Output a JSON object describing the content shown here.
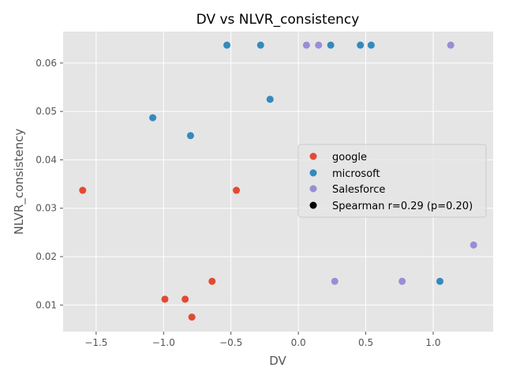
{
  "chart_data": {
    "type": "scatter",
    "title": "DV vs NLVR_consistency",
    "xlabel": "DV",
    "ylabel": "NLVR_consistency",
    "xlim": [
      -1.745,
      1.445
    ],
    "ylim": [
      0.0045,
      0.0665
    ],
    "xticks": [
      -1.5,
      -1.0,
      -0.5,
      0.0,
      0.5,
      1.0
    ],
    "xtick_labels": [
      "−1.5",
      "−1.0",
      "−0.5",
      "0.0",
      "0.5",
      "1.0"
    ],
    "yticks": [
      0.01,
      0.02,
      0.03,
      0.04,
      0.05,
      0.06
    ],
    "ytick_labels": [
      "0.01",
      "0.02",
      "0.03",
      "0.04",
      "0.05",
      "0.06"
    ],
    "grid": true,
    "legend_position": "center-right",
    "annotation": "Spearman r=0.29 (p=0.20)",
    "series": [
      {
        "name": "google",
        "color": "#E24A33",
        "points": [
          {
            "x": -1.6,
            "y": 0.0337
          },
          {
            "x": -0.46,
            "y": 0.0337
          },
          {
            "x": -0.64,
            "y": 0.0149
          },
          {
            "x": -0.99,
            "y": 0.0112
          },
          {
            "x": -0.84,
            "y": 0.0112
          },
          {
            "x": -0.79,
            "y": 0.0075
          }
        ]
      },
      {
        "name": "microsoft",
        "color": "#348ABD",
        "points": [
          {
            "x": -0.53,
            "y": 0.0637
          },
          {
            "x": -0.28,
            "y": 0.0637
          },
          {
            "x": 0.24,
            "y": 0.0637
          },
          {
            "x": 0.46,
            "y": 0.0637
          },
          {
            "x": 0.54,
            "y": 0.0637
          },
          {
            "x": -0.21,
            "y": 0.0525
          },
          {
            "x": -1.08,
            "y": 0.0487
          },
          {
            "x": -0.8,
            "y": 0.045
          },
          {
            "x": 1.05,
            "y": 0.0149
          }
        ]
      },
      {
        "name": "Salesforce",
        "color": "#988ED5",
        "points": [
          {
            "x": 0.06,
            "y": 0.0637
          },
          {
            "x": 0.15,
            "y": 0.0637
          },
          {
            "x": 1.13,
            "y": 0.0637
          },
          {
            "x": 1.3,
            "y": 0.0224
          },
          {
            "x": 0.27,
            "y": 0.0149
          },
          {
            "x": 0.77,
            "y": 0.0149
          }
        ]
      }
    ],
    "legend": [
      {
        "label": "google",
        "color": "#E24A33"
      },
      {
        "label": "microsoft",
        "color": "#348ABD"
      },
      {
        "label": "Salesforce",
        "color": "#988ED5"
      },
      {
        "label": "Spearman r=0.29 (p=0.20)",
        "color": "#000000"
      }
    ],
    "colors": {
      "plot_background": "#E5E5E5",
      "grid": "#FFFFFF",
      "text": "#555555",
      "title": "#000000"
    }
  }
}
